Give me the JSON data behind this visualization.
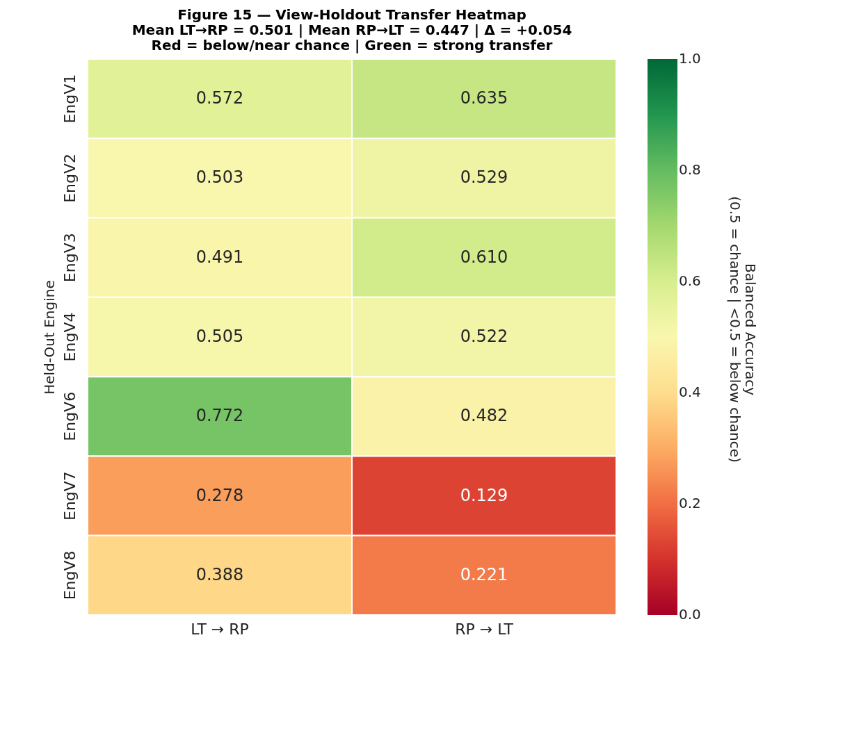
{
  "chart_data": {
    "type": "heatmap",
    "title": "Figure 15 — View-Holdout Transfer Heatmap",
    "subtitle": "Mean LT→RP = 0.501  |  Mean RP→LT = 0.447  |  Δ = +0.054\nRed = below/near chance  |  Green = strong transfer",
    "ylabel": "Held-Out Engine",
    "clabel": "Balanced Accuracy\n(0.5 = chance | <0.5 = below chance)",
    "categories": [
      "LT → RP",
      "RP → LT"
    ],
    "y_categories": [
      "EngV1",
      "EngV2",
      "EngV3",
      "EngV4",
      "EngV6",
      "EngV7",
      "EngV8"
    ],
    "cells": [
      [
        0.572,
        0.635
      ],
      [
        0.503,
        0.529
      ],
      [
        0.491,
        0.61
      ],
      [
        0.505,
        0.522
      ],
      [
        0.772,
        0.482
      ],
      [
        0.278,
        0.129
      ],
      [
        0.388,
        0.221
      ]
    ],
    "cell_labels": [
      [
        "0.572",
        "0.635"
      ],
      [
        "0.503",
        "0.529"
      ],
      [
        "0.491",
        "0.610"
      ],
      [
        "0.505",
        "0.522"
      ],
      [
        "0.772",
        "0.482"
      ],
      [
        "0.278",
        "0.129"
      ],
      [
        "0.388",
        "0.221"
      ]
    ],
    "clim": [
      0,
      1
    ],
    "cticks": [
      {
        "value": 0,
        "label": "0.0"
      },
      0.2,
      0.4,
      0.6,
      0.8,
      {
        "value": 1,
        "label": "1.0"
      }
    ],
    "data_labels": true
  }
}
